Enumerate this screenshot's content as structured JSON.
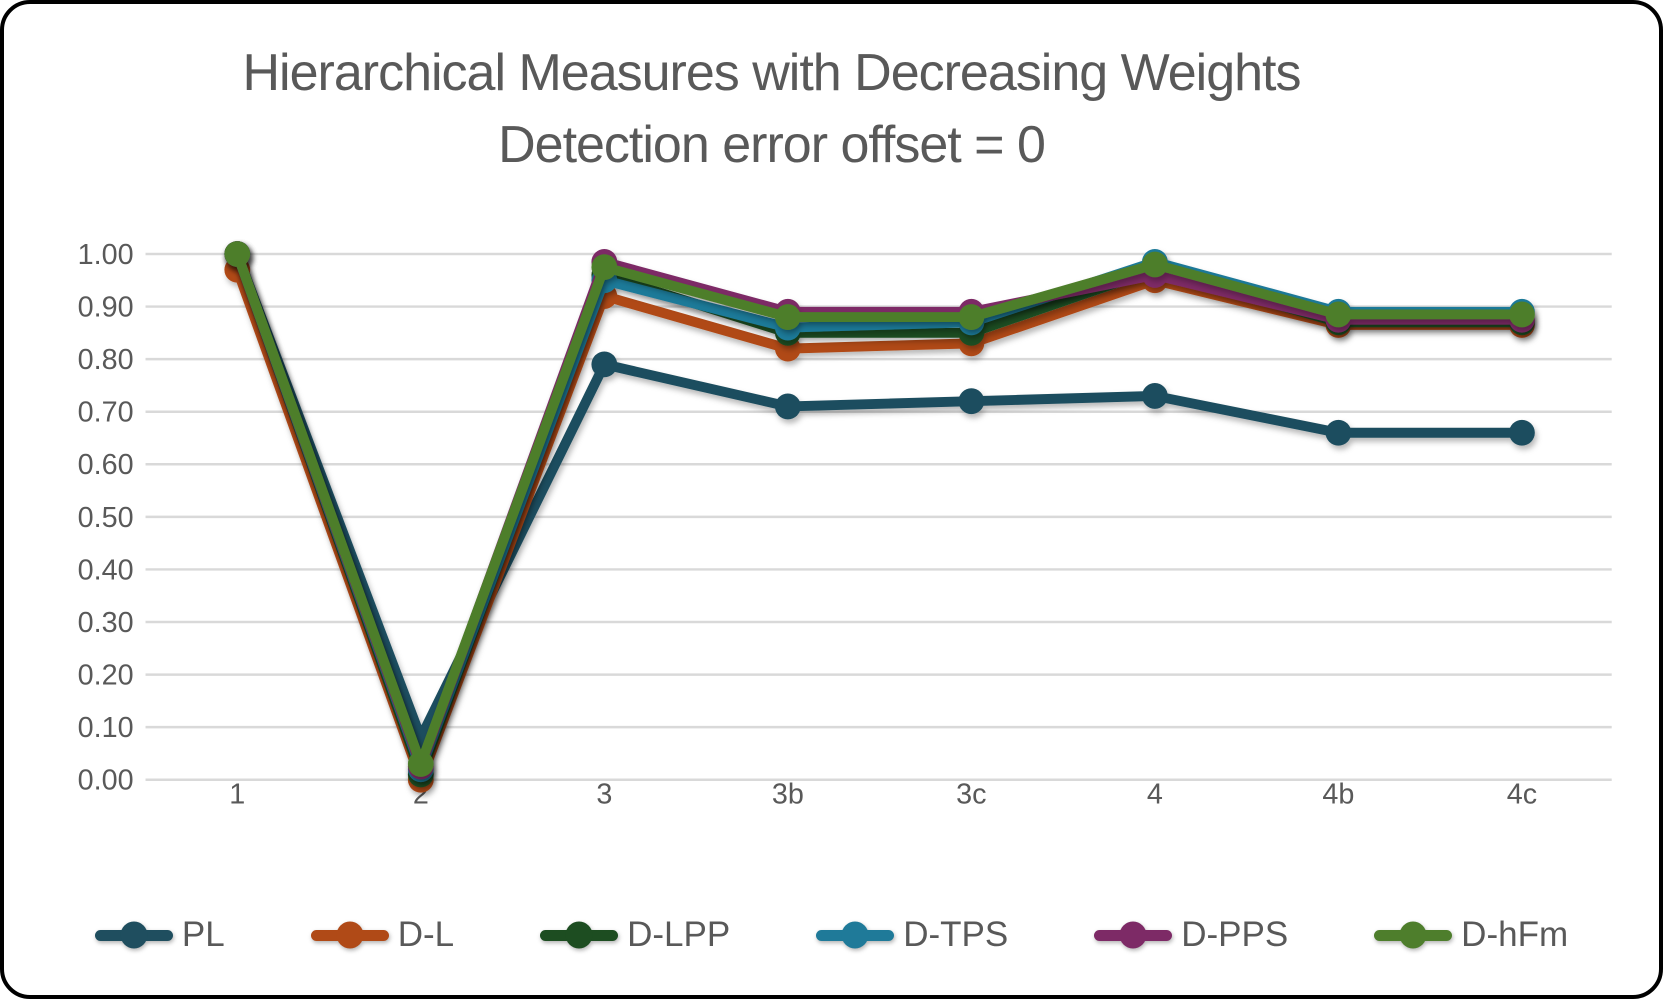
{
  "frame": {
    "background": "#FFFFFF",
    "border_color": "#000000"
  },
  "title": {
    "line1": "Hierarchical Measures with Decreasing Weights",
    "line2": "Detection error offset = 0",
    "color": "#595959"
  },
  "chart_data": {
    "type": "line",
    "categories": [
      "1",
      "2",
      "3",
      "3b",
      "3c",
      "4",
      "4b",
      "4c"
    ],
    "series": [
      {
        "name": "PL",
        "color": "#1F4E5F",
        "values": [
          1.0,
          0.08,
          0.79,
          0.71,
          0.72,
          0.73,
          0.66,
          0.66
        ]
      },
      {
        "name": "D-L",
        "color": "#B04A17",
        "values": [
          0.97,
          0.0,
          0.92,
          0.82,
          0.83,
          0.95,
          0.865,
          0.865
        ]
      },
      {
        "name": "D-LPP",
        "color": "#1D4D21",
        "values": [
          1.0,
          0.01,
          0.96,
          0.85,
          0.85,
          0.97,
          0.87,
          0.87
        ]
      },
      {
        "name": "D-TPS",
        "color": "#1F7A99",
        "values": [
          1.0,
          0.02,
          0.95,
          0.86,
          0.87,
          0.985,
          0.89,
          0.89
        ]
      },
      {
        "name": "D-PPS",
        "color": "#7D2A66",
        "values": [
          1.0,
          0.025,
          0.985,
          0.89,
          0.89,
          0.96,
          0.875,
          0.875
        ]
      },
      {
        "name": "D-hFm",
        "color": "#4E7E2C",
        "values": [
          1.0,
          0.03,
          0.975,
          0.88,
          0.88,
          0.98,
          0.885,
          0.885
        ]
      }
    ],
    "ylim": [
      0.0,
      1.0
    ],
    "ytick_step": 0.1,
    "ytick_labels": [
      "0.00",
      "0.10",
      "0.20",
      "0.30",
      "0.40",
      "0.50",
      "0.60",
      "0.70",
      "0.80",
      "0.90",
      "1.00"
    ],
    "grid": true,
    "gridline_color": "#D9D9D9",
    "axis_label_color": "#595959",
    "legend_position": "bottom"
  }
}
